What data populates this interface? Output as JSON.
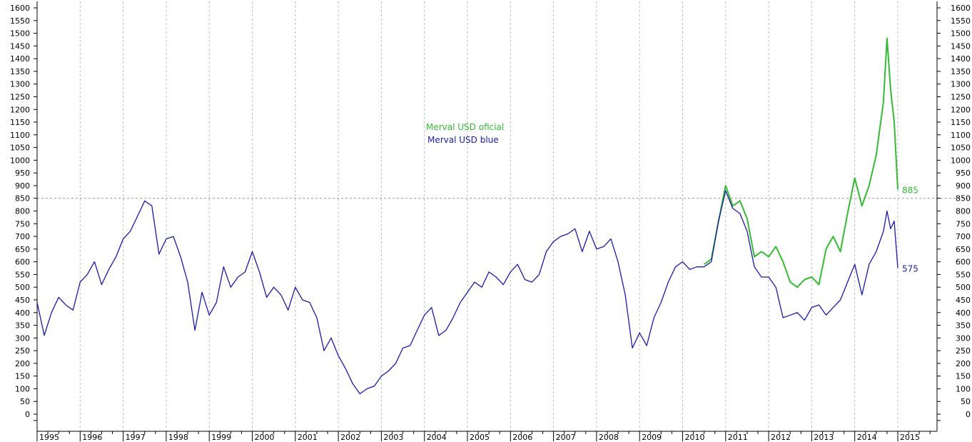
{
  "chart_data": {
    "type": "line",
    "x_axis": {
      "type": "date",
      "tick_labels": [
        "1995",
        "1996",
        "1997",
        "1998",
        "1999",
        "2000",
        "2001",
        "2002",
        "2003",
        "2004",
        "2005",
        "2006",
        "2007",
        "2008",
        "2009",
        "2010",
        "2011",
        "2012",
        "2013",
        "2014",
        "2015"
      ]
    },
    "y_axis": {
      "ylim": [
        0,
        1600
      ],
      "tick_labels": [
        "0",
        "50",
        "100",
        "150",
        "200",
        "250",
        "300",
        "350",
        "400",
        "450",
        "500",
        "550",
        "600",
        "650",
        "700",
        "750",
        "800",
        "850",
        "900",
        "950",
        "1000",
        "1050",
        "1100",
        "1150",
        "1200",
        "1250",
        "1300",
        "1350",
        "1400",
        "1450",
        "1500",
        "1550",
        "1600"
      ],
      "left_and_right": true
    },
    "grid": {
      "vertical": true,
      "style": "dashed"
    },
    "reference_line": {
      "value": 850,
      "style": "dashed"
    },
    "legend": {
      "placement": "center",
      "entries": [
        "Merval USD oficial",
        "Merval USD blue"
      ]
    },
    "series": [
      {
        "name": "Merval USD oficial",
        "color": "#33bb33",
        "end_label": "885",
        "points": [
          [
            "2010-07",
            590
          ],
          [
            "2010-09",
            610
          ],
          [
            "2010-11",
            760
          ],
          [
            "2011-01",
            900
          ],
          [
            "2011-03",
            820
          ],
          [
            "2011-05",
            840
          ],
          [
            "2011-07",
            770
          ],
          [
            "2011-09",
            620
          ],
          [
            "2011-11",
            640
          ],
          [
            "2012-01",
            620
          ],
          [
            "2012-03",
            660
          ],
          [
            "2012-05",
            600
          ],
          [
            "2012-07",
            520
          ],
          [
            "2012-09",
            500
          ],
          [
            "2012-11",
            530
          ],
          [
            "2013-01",
            540
          ],
          [
            "2013-03",
            510
          ],
          [
            "2013-05",
            650
          ],
          [
            "2013-07",
            700
          ],
          [
            "2013-09",
            640
          ],
          [
            "2013-11",
            790
          ],
          [
            "2014-01",
            930
          ],
          [
            "2014-03",
            820
          ],
          [
            "2014-05",
            900
          ],
          [
            "2014-07",
            1020
          ],
          [
            "2014-09",
            1230
          ],
          [
            "2014-10",
            1480
          ],
          [
            "2014-11",
            1280
          ],
          [
            "2014-12",
            1150
          ],
          [
            "2015-01",
            885
          ]
        ]
      },
      {
        "name": "Merval USD blue",
        "color": "#1a1aaa",
        "end_label": "575",
        "points": [
          [
            "1995-01",
            440
          ],
          [
            "1995-03",
            310
          ],
          [
            "1995-05",
            400
          ],
          [
            "1995-07",
            460
          ],
          [
            "1995-09",
            430
          ],
          [
            "1995-11",
            410
          ],
          [
            "1996-01",
            520
          ],
          [
            "1996-03",
            550
          ],
          [
            "1996-05",
            600
          ],
          [
            "1996-07",
            510
          ],
          [
            "1996-09",
            570
          ],
          [
            "1996-11",
            620
          ],
          [
            "1997-01",
            690
          ],
          [
            "1997-03",
            720
          ],
          [
            "1997-05",
            780
          ],
          [
            "1997-07",
            840
          ],
          [
            "1997-09",
            820
          ],
          [
            "1997-11",
            630
          ],
          [
            "1998-01",
            690
          ],
          [
            "1998-03",
            700
          ],
          [
            "1998-05",
            620
          ],
          [
            "1998-07",
            520
          ],
          [
            "1998-09",
            330
          ],
          [
            "1998-11",
            480
          ],
          [
            "1999-01",
            390
          ],
          [
            "1999-03",
            440
          ],
          [
            "1999-05",
            580
          ],
          [
            "1999-07",
            500
          ],
          [
            "1999-09",
            540
          ],
          [
            "1999-11",
            560
          ],
          [
            "2000-01",
            640
          ],
          [
            "2000-03",
            560
          ],
          [
            "2000-05",
            460
          ],
          [
            "2000-07",
            500
          ],
          [
            "2000-09",
            470
          ],
          [
            "2000-11",
            410
          ],
          [
            "2001-01",
            500
          ],
          [
            "2001-03",
            450
          ],
          [
            "2001-05",
            440
          ],
          [
            "2001-07",
            380
          ],
          [
            "2001-09",
            250
          ],
          [
            "2001-11",
            300
          ],
          [
            "2002-01",
            230
          ],
          [
            "2002-03",
            180
          ],
          [
            "2002-05",
            120
          ],
          [
            "2002-07",
            80
          ],
          [
            "2002-09",
            100
          ],
          [
            "2002-11",
            110
          ],
          [
            "2003-01",
            150
          ],
          [
            "2003-03",
            170
          ],
          [
            "2003-05",
            200
          ],
          [
            "2003-07",
            260
          ],
          [
            "2003-09",
            270
          ],
          [
            "2003-11",
            330
          ],
          [
            "2004-01",
            390
          ],
          [
            "2004-03",
            420
          ],
          [
            "2004-05",
            310
          ],
          [
            "2004-07",
            330
          ],
          [
            "2004-09",
            380
          ],
          [
            "2004-11",
            440
          ],
          [
            "2005-01",
            480
          ],
          [
            "2005-03",
            520
          ],
          [
            "2005-05",
            500
          ],
          [
            "2005-07",
            560
          ],
          [
            "2005-09",
            540
          ],
          [
            "2005-11",
            510
          ],
          [
            "2006-01",
            560
          ],
          [
            "2006-03",
            590
          ],
          [
            "2006-05",
            530
          ],
          [
            "2006-07",
            520
          ],
          [
            "2006-09",
            550
          ],
          [
            "2006-11",
            640
          ],
          [
            "2007-01",
            680
          ],
          [
            "2007-03",
            700
          ],
          [
            "2007-05",
            710
          ],
          [
            "2007-07",
            730
          ],
          [
            "2007-09",
            640
          ],
          [
            "2007-11",
            720
          ],
          [
            "2008-01",
            650
          ],
          [
            "2008-03",
            660
          ],
          [
            "2008-05",
            690
          ],
          [
            "2008-07",
            600
          ],
          [
            "2008-09",
            470
          ],
          [
            "2008-11",
            260
          ],
          [
            "2009-01",
            320
          ],
          [
            "2009-03",
            270
          ],
          [
            "2009-05",
            380
          ],
          [
            "2009-07",
            440
          ],
          [
            "2009-09",
            520
          ],
          [
            "2009-11",
            580
          ],
          [
            "2010-01",
            600
          ],
          [
            "2010-03",
            570
          ],
          [
            "2010-05",
            580
          ],
          [
            "2010-07",
            580
          ],
          [
            "2010-09",
            600
          ],
          [
            "2010-11",
            760
          ],
          [
            "2011-01",
            880
          ],
          [
            "2011-03",
            810
          ],
          [
            "2011-05",
            790
          ],
          [
            "2011-07",
            720
          ],
          [
            "2011-09",
            580
          ],
          [
            "2011-11",
            540
          ],
          [
            "2012-01",
            540
          ],
          [
            "2012-03",
            500
          ],
          [
            "2012-05",
            380
          ],
          [
            "2012-07",
            390
          ],
          [
            "2012-09",
            400
          ],
          [
            "2012-11",
            370
          ],
          [
            "2013-01",
            420
          ],
          [
            "2013-03",
            430
          ],
          [
            "2013-05",
            390
          ],
          [
            "2013-07",
            420
          ],
          [
            "2013-09",
            450
          ],
          [
            "2013-11",
            520
          ],
          [
            "2014-01",
            590
          ],
          [
            "2014-03",
            470
          ],
          [
            "2014-05",
            590
          ],
          [
            "2014-07",
            640
          ],
          [
            "2014-09",
            720
          ],
          [
            "2014-10",
            800
          ],
          [
            "2014-11",
            730
          ],
          [
            "2014-12",
            760
          ],
          [
            "2015-01",
            575
          ]
        ]
      }
    ]
  }
}
